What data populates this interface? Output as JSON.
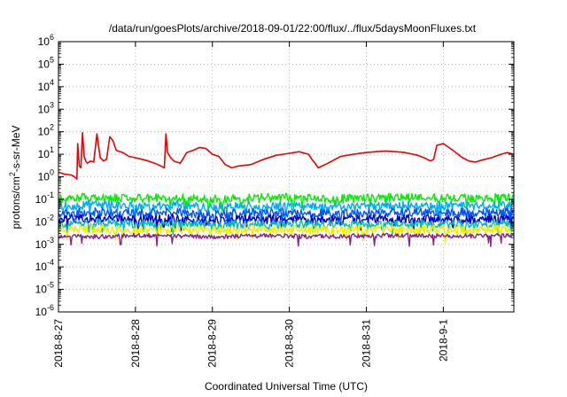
{
  "chart_data": {
    "type": "line",
    "title": "/data/run/goesPlots/archive/2018-09-01/22:00/flux/../flux/5daysMoonFluxes.txt",
    "xlabel": "Coordinated Universal Time (UTC)",
    "ylabel": {
      "base": "protons/cm",
      "sup": "2",
      "rest": "-s-sr-MeV"
    },
    "y_scale": "log",
    "ylim": [
      1e-06,
      1000000.0
    ],
    "y_ticks": [
      {
        "value": 1e-06,
        "base": "10",
        "exp": "-6"
      },
      {
        "value": 1e-05,
        "base": "10",
        "exp": "-5"
      },
      {
        "value": 0.0001,
        "base": "10",
        "exp": "-4"
      },
      {
        "value": 0.001,
        "base": "10",
        "exp": "-3"
      },
      {
        "value": 0.01,
        "base": "10",
        "exp": "-2"
      },
      {
        "value": 0.1,
        "base": "10",
        "exp": "-1"
      },
      {
        "value": 1,
        "base": "10",
        "exp": "0"
      },
      {
        "value": 10,
        "base": "10",
        "exp": "1"
      },
      {
        "value": 100,
        "base": "10",
        "exp": "2"
      },
      {
        "value": 1000,
        "base": "10",
        "exp": "3"
      },
      {
        "value": 10000,
        "base": "10",
        "exp": "4"
      },
      {
        "value": 100000,
        "base": "10",
        "exp": "5"
      },
      {
        "value": 1000000,
        "base": "10",
        "exp": "6"
      }
    ],
    "xlim": [
      "2018-8-27",
      "2018-9-1 22:00"
    ],
    "x_ticks": [
      "2018-8-27",
      "2018-8-28",
      "2018-8-29",
      "2018-8-30",
      "2018-8-31",
      "2018-9-1"
    ],
    "grid": true,
    "legend": "none",
    "series": [
      {
        "color": "#ee0000",
        "x": [
          "2018-8-27 00:00",
          "2018-8-27 02:00",
          "2018-8-27 04:00",
          "2018-8-27 05:00",
          "2018-8-27 05:45",
          "2018-8-27 06:00",
          "2018-8-27 06:30",
          "2018-8-27 07:00",
          "2018-8-27 07:30",
          "2018-8-27 08:00",
          "2018-8-27 08:30",
          "2018-8-27 09:00",
          "2018-8-27 10:00",
          "2018-8-27 11:00",
          "2018-8-27 12:00",
          "2018-8-27 13:00",
          "2018-8-27 13:30",
          "2018-8-27 14:00",
          "2018-8-27 15:00",
          "2018-8-27 16:00",
          "2018-8-27 17:00",
          "2018-8-27 18:00",
          "2018-8-27 20:00",
          "2018-8-27 22:00",
          "2018-8-28 00:00",
          "2018-8-28 02:00",
          "2018-8-28 04:00",
          "2018-8-28 06:00",
          "2018-8-28 08:00",
          "2018-8-28 09:00",
          "2018-8-28 09:30",
          "2018-8-28 10:00",
          "2018-8-28 11:00",
          "2018-8-28 12:00",
          "2018-8-28 14:00",
          "2018-8-28 16:00",
          "2018-8-28 18:00",
          "2018-8-28 20:00",
          "2018-8-28 22:00",
          "2018-8-29 00:00",
          "2018-8-29 02:00",
          "2018-8-29 04:00",
          "2018-8-29 06:00",
          "2018-8-29 08:00",
          "2018-8-29 12:00",
          "2018-8-29 16:00",
          "2018-8-29 20:00",
          "2018-8-30 00:00",
          "2018-8-30 03:00",
          "2018-8-30 06:00",
          "2018-8-30 07:00",
          "2018-8-30 08:00",
          "2018-8-30 09:00",
          "2018-8-30 12:00",
          "2018-8-30 16:00",
          "2018-8-30 20:00",
          "2018-8-31 00:00",
          "2018-8-31 03:00",
          "2018-8-31 06:00",
          "2018-8-31 09:00",
          "2018-8-31 12:00",
          "2018-8-31 16:00",
          "2018-8-31 18:00",
          "2018-8-31 20:00",
          "2018-8-31 21:00",
          "2018-8-31 22:00",
          "2018-9-1 00:00",
          "2018-9-1 03:00",
          "2018-9-1 06:00",
          "2018-9-1 08:00",
          "2018-9-1 10:00",
          "2018-9-1 12:00",
          "2018-9-1 15:00",
          "2018-9-1 18:00",
          "2018-9-1 20:00",
          "2018-9-1 22:00"
        ],
        "values": [
          1.6,
          1.3,
          1.2,
          1.0,
          0.8,
          30,
          3,
          2.5,
          90,
          8,
          5,
          4,
          5,
          4.5,
          80,
          7,
          6,
          5,
          6,
          60,
          40,
          15,
          12,
          8,
          7,
          6,
          5,
          4,
          3,
          2.5,
          80,
          12,
          7,
          5,
          4,
          12,
          15,
          20,
          18,
          10,
          8,
          3.5,
          2.5,
          3,
          3.5,
          6,
          9,
          11,
          13,
          10,
          6,
          4,
          2.5,
          4,
          8,
          10,
          12,
          13,
          14,
          13,
          12,
          9,
          7,
          5,
          6,
          25,
          30,
          15,
          7,
          5,
          4.5,
          5.5,
          7,
          10,
          12,
          10
        ]
      },
      {
        "color": "#00ee00",
        "x": [
          "2018-8-27 00:00",
          "2018-8-27 12:00",
          "2018-8-28 00:00",
          "2018-8-28 12:00",
          "2018-8-29 00:00",
          "2018-8-29 12:00",
          "2018-8-30 00:00",
          "2018-8-30 12:00",
          "2018-8-31 00:00",
          "2018-8-31 12:00",
          "2018-9-1 00:00",
          "2018-9-1 12:00",
          "2018-9-1 22:00"
        ],
        "values": [
          0.12,
          0.12,
          0.11,
          0.12,
          0.1,
          0.11,
          0.12,
          0.1,
          0.11,
          0.12,
          0.11,
          0.12,
          0.12
        ]
      },
      {
        "color": "#00aaff",
        "x": [
          "2018-8-27 00:00",
          "2018-8-27 12:00",
          "2018-8-28 00:00",
          "2018-8-28 12:00",
          "2018-8-29 00:00",
          "2018-8-29 12:00",
          "2018-8-30 00:00",
          "2018-8-30 12:00",
          "2018-8-31 00:00",
          "2018-8-31 12:00",
          "2018-9-1 00:00",
          "2018-9-1 12:00",
          "2018-9-1 22:00"
        ],
        "values": [
          0.05,
          0.055,
          0.05,
          0.055,
          0.04,
          0.05,
          0.05,
          0.045,
          0.05,
          0.055,
          0.05,
          0.05,
          0.055
        ]
      },
      {
        "color": "#0055ff",
        "x": [
          "2018-8-27 00:00",
          "2018-8-27 12:00",
          "2018-8-28 00:00",
          "2018-8-28 12:00",
          "2018-8-29 00:00",
          "2018-8-29 12:00",
          "2018-8-30 00:00",
          "2018-8-30 12:00",
          "2018-8-31 00:00",
          "2018-8-31 12:00",
          "2018-9-1 00:00",
          "2018-9-1 12:00",
          "2018-9-1 22:00"
        ],
        "values": [
          0.025,
          0.028,
          0.025,
          0.027,
          0.022,
          0.025,
          0.025,
          0.023,
          0.025,
          0.027,
          0.025,
          0.026,
          0.027
        ]
      },
      {
        "color": "#0000cc",
        "x": [
          "2018-8-27 00:00",
          "2018-8-27 12:00",
          "2018-8-28 00:00",
          "2018-8-28 12:00",
          "2018-8-29 00:00",
          "2018-8-29 12:00",
          "2018-8-30 00:00",
          "2018-8-30 12:00",
          "2018-8-31 00:00",
          "2018-8-31 12:00",
          "2018-9-1 00:00",
          "2018-9-1 12:00",
          "2018-9-1 22:00"
        ],
        "values": [
          0.013,
          0.015,
          0.013,
          0.014,
          0.011,
          0.013,
          0.013,
          0.012,
          0.013,
          0.014,
          0.013,
          0.013,
          0.014
        ]
      },
      {
        "color": "#00bbbb",
        "x": [
          "2018-8-27 00:00",
          "2018-8-27 12:00",
          "2018-8-28 00:00",
          "2018-8-28 12:00",
          "2018-8-29 00:00",
          "2018-8-29 12:00",
          "2018-8-30 00:00",
          "2018-8-30 12:00",
          "2018-8-31 00:00",
          "2018-8-31 12:00",
          "2018-9-1 00:00",
          "2018-9-1 12:00",
          "2018-9-1 22:00"
        ],
        "values": [
          0.008,
          0.009,
          0.008,
          0.0085,
          0.007,
          0.008,
          0.008,
          0.0075,
          0.008,
          0.0085,
          0.008,
          0.008,
          0.0085
        ]
      },
      {
        "color": "#eeee00",
        "x": [
          "2018-8-27 00:00",
          "2018-8-27 12:00",
          "2018-8-28 00:00",
          "2018-8-28 12:00",
          "2018-8-29 00:00",
          "2018-8-29 12:00",
          "2018-8-30 00:00",
          "2018-8-30 12:00",
          "2018-8-31 00:00",
          "2018-8-31 12:00",
          "2018-9-1 00:00",
          "2018-9-1 12:00",
          "2018-9-1 22:00"
        ],
        "values": [
          0.0045,
          0.0048,
          0.0045,
          0.0047,
          0.0042,
          0.0045,
          0.0045,
          0.0043,
          0.0045,
          0.0047,
          0.0045,
          0.0046,
          0.0047
        ]
      },
      {
        "color": "#882288",
        "x": [
          "2018-8-27 00:00",
          "2018-8-27 12:00",
          "2018-8-28 00:00",
          "2018-8-28 12:00",
          "2018-8-29 00:00",
          "2018-8-29 12:00",
          "2018-8-30 00:00",
          "2018-8-30 12:00",
          "2018-8-31 00:00",
          "2018-8-31 12:00",
          "2018-9-1 00:00",
          "2018-9-1 12:00",
          "2018-9-1 22:00"
        ],
        "values": [
          0.0024,
          0.0022,
          0.0025,
          0.0024,
          0.0021,
          0.0024,
          0.0023,
          0.0022,
          0.0024,
          0.0025,
          0.0024,
          0.0024,
          0.0025
        ]
      }
    ]
  }
}
